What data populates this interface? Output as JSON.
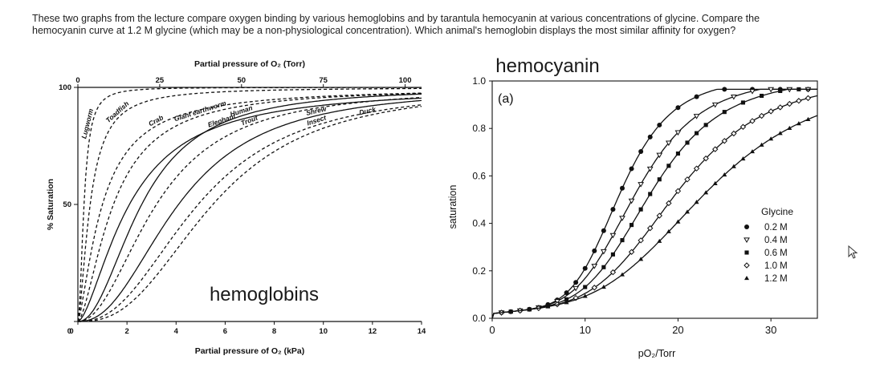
{
  "question": {
    "line1": "These two graphs from the lecture compare oxygen binding by various hemoglobins and by tarantula hemocyanin at various concentrations of glycine. Compare the",
    "line2": "hemocyanin curve at 1.2 M glycine (which may be a non-physiological concentration). Which animal's hemoglobin displays the most similar affinity for oxygen?"
  },
  "colors": {
    "ink": "#111111",
    "text": "#222222"
  },
  "chart_data": [
    {
      "type": "line",
      "title": "hemoglobins",
      "xlabel": "Partial pressure of O₂ (kPa)",
      "x2label": "Partial pressure of O₂ (Torr)",
      "ylabel": "% Saturation",
      "xlim": [
        0,
        14
      ],
      "ylim": [
        0,
        100
      ],
      "x_ticks": [
        "0",
        "2",
        "4",
        "6",
        "8",
        "10",
        "12",
        "14"
      ],
      "x2_ticks": [
        "0",
        "25",
        "50",
        "75",
        "100"
      ],
      "y_ticks": [
        "0",
        "50",
        "100"
      ],
      "series": [
        {
          "name": "Lugworm",
          "style": "dashed",
          "p50_kpa": 0.25,
          "n": 2.0
        },
        {
          "name": "Toadfish",
          "style": "dashed",
          "p50_kpa": 0.5,
          "n": 1.6
        },
        {
          "name": "Crab",
          "style": "dashed",
          "p50_kpa": 1.0,
          "n": 1.4
        },
        {
          "name": "Giant earthworm",
          "style": "dashed",
          "p50_kpa": 1.45,
          "n": 1.6
        },
        {
          "name": "Elephant",
          "style": "solid",
          "p50_kpa": 2.1,
          "n": 1.6
        },
        {
          "name": "Human",
          "style": "solid",
          "p50_kpa": 2.6,
          "n": 2.1
        },
        {
          "name": "Trout",
          "style": "dashed",
          "p50_kpa": 3.2,
          "n": 2.1
        },
        {
          "name": "Shrew",
          "style": "solid",
          "p50_kpa": 4.1,
          "n": 2.3
        },
        {
          "name": "Insect",
          "style": "dashed",
          "p50_kpa": 4.9,
          "n": 2.4
        },
        {
          "name": "Duck",
          "style": "dashed",
          "p50_kpa": 5.5,
          "n": 2.6
        }
      ]
    },
    {
      "type": "scatter",
      "title": "hemocyanin",
      "panel_label": "(a)",
      "xlabel": "pO₂/Torr",
      "ylabel": "saturation",
      "xlim": [
        0,
        35
      ],
      "ylim": [
        0,
        1.0
      ],
      "x_ticks": [
        "0",
        "10",
        "20",
        "30"
      ],
      "y_ticks": [
        "0.0",
        "0.2",
        "0.4",
        "0.6",
        "0.8",
        "1.0"
      ],
      "legend_title": "Glycine",
      "legend_position": "lower-right",
      "series": [
        {
          "name": "0.2 M",
          "marker": "filled-circle",
          "p50_torr": 14.0,
          "n": 5.0,
          "x": [
            1,
            2,
            3,
            4,
            5,
            6,
            7,
            8,
            9,
            10,
            11,
            12,
            13,
            14,
            15,
            16,
            17,
            18,
            20,
            22,
            25,
            28,
            31,
            34
          ]
        },
        {
          "name": "0.4 M",
          "marker": "open-triangle-down",
          "p50_torr": 15.8,
          "n": 4.5,
          "x": [
            1,
            3,
            5,
            7,
            9,
            11,
            12,
            13,
            14,
            15,
            16,
            17,
            18,
            19,
            20,
            22,
            24,
            26,
            28,
            30,
            32,
            34
          ]
        },
        {
          "name": "0.6 M",
          "marker": "filled-square",
          "p50_torr": 17.5,
          "n": 4.5,
          "x": [
            2,
            4,
            6,
            8,
            10,
            12,
            13,
            14,
            15,
            16,
            17,
            18,
            19,
            20,
            21,
            22,
            23,
            25,
            27,
            29,
            31,
            33
          ]
        },
        {
          "name": "1.0 M",
          "marker": "open-diamond",
          "p50_torr": 20.5,
          "n": 4.2,
          "x": [
            1,
            3,
            5,
            7,
            9,
            11,
            13,
            15,
            16,
            17,
            18,
            19,
            20,
            21,
            22,
            23,
            24,
            25,
            26,
            27,
            28,
            29,
            30,
            31,
            32,
            33,
            34
          ]
        },
        {
          "name": "1.2 M",
          "marker": "filled-triangle-up",
          "p50_torr": 24.0,
          "n": 3.8,
          "x": [
            2,
            4,
            6,
            8,
            10,
            12,
            14,
            16,
            18,
            19,
            20,
            21,
            22,
            23,
            24,
            25,
            26,
            27,
            28,
            29,
            30,
            31,
            32,
            33,
            34
          ]
        }
      ]
    }
  ]
}
